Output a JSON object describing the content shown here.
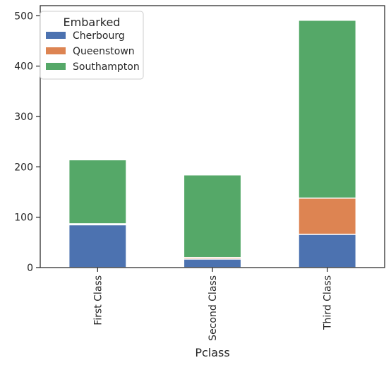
{
  "chart_data": {
    "type": "bar",
    "stacked": true,
    "xlabel": "Pclass",
    "ylabel": "",
    "categories": [
      "First Class",
      "Second Class",
      "Third Class"
    ],
    "series": [
      {
        "name": "Cherbourg",
        "values": [
          85,
          17,
          66
        ],
        "color": "#4c72b0"
      },
      {
        "name": "Queenstown",
        "values": [
          2,
          3,
          72
        ],
        "color": "#dd8452"
      },
      {
        "name": "Southampton",
        "values": [
          127,
          164,
          353
        ],
        "color": "#55a868"
      }
    ],
    "ylim": [
      0,
      520
    ],
    "yticks": [
      0,
      100,
      200,
      300,
      400,
      500
    ],
    "legend": {
      "title": "Embarked",
      "position": "top-left"
    },
    "grid": false
  }
}
